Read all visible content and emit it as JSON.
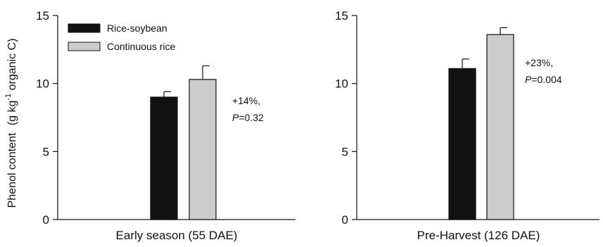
{
  "chart_data": [
    {
      "type": "bar",
      "categories": [
        "Early season (55 DAE)"
      ],
      "series": [
        {
          "name": "Rice-soybean",
          "values": [
            9.0
          ],
          "error": [
            0.4
          ],
          "color": "#111111"
        },
        {
          "name": "Continuous rice",
          "values": [
            10.3
          ],
          "error": [
            1.0
          ],
          "color": "#cccccc"
        }
      ],
      "ylabel": "Phenol content",
      "ylabel_unit_prefix": "(g kg",
      "ylabel_superscript": "-1",
      "ylabel_unit_suffix": " organic C)",
      "ylim": [
        0,
        15
      ],
      "yticks": [
        "0",
        "5",
        "10",
        "15"
      ],
      "annotation": {
        "line1": "+14%,",
        "p_label": "P",
        "p_value": "=0.32"
      },
      "legend": "top-left"
    },
    {
      "type": "bar",
      "categories": [
        "Pre-Harvest (126 DAE)"
      ],
      "series": [
        {
          "name": "Rice-soybean",
          "values": [
            11.1
          ],
          "error": [
            0.7
          ],
          "color": "#111111"
        },
        {
          "name": "Continuous rice",
          "values": [
            13.6
          ],
          "error": [
            0.5
          ],
          "color": "#cccccc"
        }
      ],
      "ylim": [
        0,
        15
      ],
      "yticks": [
        "0",
        "5",
        "10",
        "15"
      ],
      "annotation": {
        "line1": "+23%,",
        "p_label": "P",
        "p_value": "=0.004"
      }
    }
  ]
}
